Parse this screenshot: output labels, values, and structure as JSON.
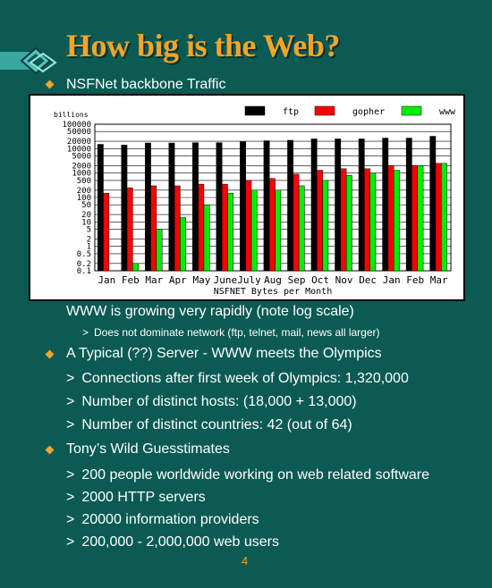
{
  "slide": {
    "title": "How big is the Web?",
    "page_number": "4",
    "colors": {
      "background": "#0b5a54",
      "title": "#f2a52a",
      "bullet": "#f2a52a"
    }
  },
  "bullets": {
    "b1": "NSFNet backbone Traffic",
    "b1_sub": "WWW is growing very rapidly (note log scale)",
    "b1_note": "Does not dominate network  (ftp, telnet, mail, news all larger)",
    "b2": "A Typical (??) Server - WWW meets the Olympics",
    "b2_items": [
      "Connections after first week of Olympics: 1,320,000",
      "Number of distinct hosts: (18,000 + 13,000)",
      "Number of distinct countries: 42 (out of 64)"
    ],
    "b3": "Tony’s Wild Guesstimates",
    "b3_items": [
      "200 people worldwide working on web related software",
      "2000 HTTP servers",
      "20000 information providers",
      "200,000 - 2,000,000 web users"
    ],
    "sub_marker": ">"
  },
  "chart_data": {
    "type": "bar",
    "ylabel": "billions",
    "xlabel": "NSFNET Bytes per Month",
    "yscale": "log",
    "ylim": [
      0.1,
      100000
    ],
    "yticks": [
      "100000",
      "50000",
      "20000",
      "10000",
      "5000",
      "2000",
      "1000",
      "500",
      "200",
      "100",
      "50",
      "20",
      "10",
      "5",
      "2",
      "1",
      "0.5",
      "0.2",
      "0.1"
    ],
    "ytick_values": [
      100000,
      50000,
      20000,
      10000,
      5000,
      2000,
      1000,
      500,
      200,
      100,
      50,
      20,
      10,
      5,
      2,
      1,
      0.5,
      0.2,
      0.1
    ],
    "categories": [
      "Jan",
      "Feb",
      "Mar",
      "Apr",
      "May",
      "June",
      "July",
      "Aug",
      "Sep",
      "Oct",
      "Nov",
      "Dec",
      "Jan",
      "Feb",
      "Mar"
    ],
    "legend_placement": "top-right",
    "grid": true,
    "series": [
      {
        "name": "ftp",
        "color": "#000000",
        "values": [
          15000,
          14000,
          17000,
          17000,
          17500,
          17500,
          19000,
          21000,
          22000,
          25000,
          25000,
          25000,
          27000,
          27000,
          32000
        ]
      },
      {
        "name": "gopher",
        "color": "#ff0000",
        "values": [
          150,
          250,
          300,
          300,
          350,
          350,
          500,
          600,
          900,
          1300,
          1500,
          1500,
          2000,
          2000,
          2500
        ]
      },
      {
        "name": "www",
        "color": "#00ee00",
        "values": [
          0.1,
          0.2,
          5,
          15,
          50,
          150,
          200,
          200,
          300,
          500,
          800,
          1000,
          1300,
          2000,
          2500
        ]
      }
    ]
  }
}
